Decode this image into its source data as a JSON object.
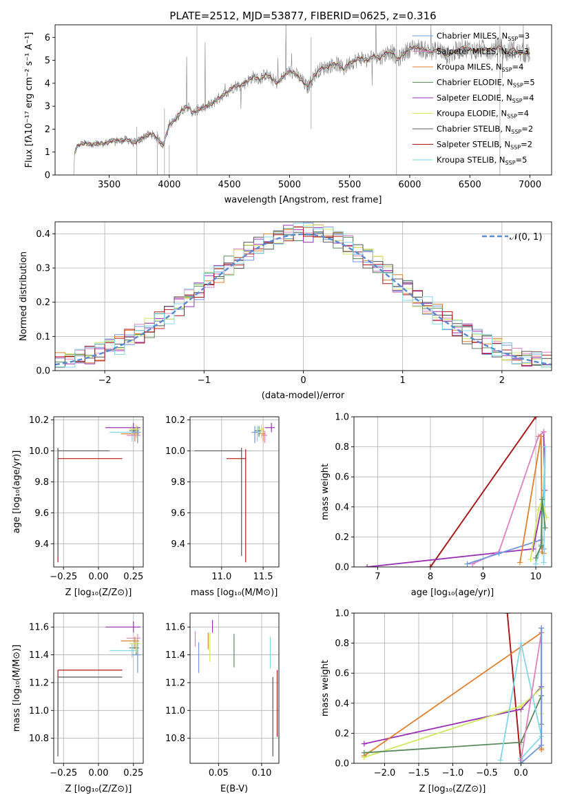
{
  "colors": [
    "#6f96e0",
    "#e07f2c",
    "#e080c0",
    "#5a8a5a",
    "#9a2fb5",
    "#cfe85a",
    "#555555",
    "#b01515",
    "#7fd7e8"
  ],
  "chart_data": [
    {
      "id": "spectrum",
      "type": "line",
      "title": "PLATE=2512, MJD=53877, FIBERID=0625, z=0.316",
      "xlabel": "wavelength [Angstrom, rest frame]",
      "ylabel": "Flux [fλ10⁻¹⁷ erg cm⁻² s⁻¹ A⁻¹]",
      "xlim": [
        3050,
        7180
      ],
      "ylim": [
        0,
        6.55
      ],
      "xticks": [
        3500,
        4000,
        4500,
        5000,
        5500,
        6000,
        6500,
        7000
      ],
      "yticks": [
        0,
        1,
        2,
        3,
        4,
        5,
        6
      ],
      "grid": false,
      "legend_position": "upper-right",
      "data_color": "#808080",
      "continuum": {
        "x": [
          3210,
          3230,
          3260,
          3300,
          3350,
          3400,
          3450,
          3500,
          3550,
          3600,
          3650,
          3700,
          3750,
          3800,
          3850,
          3900,
          3950,
          4000,
          4050,
          4100,
          4150,
          4200,
          4250,
          4300,
          4350,
          4400,
          4450,
          4500,
          4550,
          4600,
          4650,
          4700,
          4750,
          4800,
          4850,
          4900,
          4950,
          5000,
          5050,
          5100,
          5150,
          5200,
          5250,
          5300,
          5350,
          5400,
          5450,
          5500,
          5550,
          5600,
          5650,
          5700,
          5750,
          5800,
          5850,
          5900,
          5950,
          6000,
          6050,
          6100,
          6150,
          6200,
          6250,
          6300,
          6350,
          6400,
          6450,
          6500,
          6550,
          6600,
          6650,
          6700,
          6750,
          6800,
          6850,
          6900,
          6950,
          7000
        ],
        "y": [
          0.9,
          1.2,
          1.35,
          1.4,
          1.3,
          1.4,
          1.35,
          1.45,
          1.5,
          1.5,
          1.55,
          1.4,
          1.5,
          1.7,
          1.8,
          1.6,
          1.3,
          2.2,
          2.4,
          2.8,
          3.0,
          2.7,
          2.9,
          2.95,
          3.1,
          3.3,
          3.5,
          3.7,
          3.9,
          3.9,
          4.1,
          4.3,
          4.15,
          4.4,
          4.2,
          4.0,
          4.3,
          4.55,
          4.4,
          4.15,
          3.8,
          4.3,
          4.6,
          4.7,
          4.8,
          4.85,
          4.6,
          4.9,
          5.0,
          5.1,
          5.0,
          5.2,
          5.1,
          5.3,
          5.4,
          5.0,
          5.3,
          5.5,
          5.6,
          5.5,
          5.4,
          5.4,
          5.5,
          5.2,
          5.3,
          5.45,
          5.55,
          5.5,
          5.4,
          5.5,
          5.45,
          5.5,
          5.6,
          5.3,
          5.5,
          5.35,
          5.3,
          5.3
        ]
      },
      "series": [
        {
          "name": "Chabrier MILES, N_SSP=3",
          "color": "#6f96e0"
        },
        {
          "name": "Salpeter MILES, N_SSP=3",
          "color": "#e080c0"
        },
        {
          "name": "Kroupa MILES, N_SSP=4",
          "color": "#e07f2c"
        },
        {
          "name": "Chabrier ELODIE, N_SSP=5",
          "color": "#5a8a5a"
        },
        {
          "name": "Salpeter ELODIE, N_SSP=4",
          "color": "#9a2fb5"
        },
        {
          "name": "Kroupa ELODIE, N_SSP=4",
          "color": "#cfe85a"
        },
        {
          "name": "Chabrier STELIB, N_SSP=2",
          "color": "#555555"
        },
        {
          "name": "Salpeter STELIB, N_SSP=2",
          "color": "#b01515"
        },
        {
          "name": "Kroupa STELIB, N_SSP=5",
          "color": "#7fd7e8"
        }
      ]
    },
    {
      "id": "residuals",
      "type": "line",
      "xlabel": "(data-model)/error",
      "ylabel": "Normed distribution",
      "xlim": [
        -2.5,
        2.5
      ],
      "ylim": [
        0,
        0.435
      ],
      "xticks": [
        -2,
        -1,
        0,
        1,
        2
      ],
      "yticks": [
        0.0,
        0.1,
        0.2,
        0.3,
        0.4
      ],
      "grid": true,
      "legend_position": "upper-right",
      "normal_curve": {
        "name": "𝒩(0, 1)",
        "color": "#5b8ad6",
        "style": "dashed"
      }
    },
    {
      "id": "age_vs_Z",
      "type": "scatter",
      "xlabel": "Z [log₁₀(Z/Z⊙)]",
      "ylabel": "age  [log₁₀(age/yr)]",
      "xlim": [
        -0.32,
        0.32
      ],
      "ylim": [
        9.25,
        10.22
      ],
      "xticks": [
        -0.25,
        0.0,
        0.25
      ],
      "yticks": [
        9.4,
        9.6,
        9.8,
        10.0,
        10.2
      ],
      "grid": true,
      "points": [
        {
          "x": -0.29,
          "y": 9.95,
          "xerr": [
            0,
            0.46
          ],
          "yerr": [
            0.67,
            0.06
          ],
          "color": "#b01515"
        },
        {
          "x": -0.29,
          "y": 10.0,
          "xerr": [
            0,
            0.37
          ],
          "yerr": [
            0.68,
            0.02
          ],
          "color": "#555555"
        },
        {
          "x": 0.25,
          "y": 10.15,
          "xerr": [
            0.2,
            0.05
          ],
          "yerr": [
            0.03,
            0.03
          ],
          "color": "#9a2fb5"
        },
        {
          "x": 0.26,
          "y": 10.11,
          "xerr": [
            0.1,
            0.03
          ],
          "yerr": [
            0.05,
            0.04
          ],
          "color": "#e07f2c"
        },
        {
          "x": 0.27,
          "y": 10.13,
          "xerr": [
            0.05,
            0.02
          ],
          "yerr": [
            0.04,
            0.03
          ],
          "color": "#5a8a5a"
        },
        {
          "x": 0.24,
          "y": 10.12,
          "xerr": [
            0.16,
            0.04
          ],
          "yerr": [
            0.06,
            0.04
          ],
          "color": "#7fd7e8"
        },
        {
          "x": 0.28,
          "y": 10.1,
          "xerr": [
            0.08,
            0.02
          ],
          "yerr": [
            0.05,
            0.03
          ],
          "color": "#e080c0"
        },
        {
          "x": 0.27,
          "y": 10.14,
          "xerr": [
            0.05,
            0.03
          ],
          "yerr": [
            0.06,
            0.03
          ],
          "color": "#cfe85a"
        },
        {
          "x": 0.28,
          "y": 10.12,
          "xerr": [
            0.04,
            0.02
          ],
          "yerr": [
            0.07,
            0.04
          ],
          "color": "#6f96e0"
        }
      ]
    },
    {
      "id": "age_vs_mass",
      "type": "scatter",
      "xlabel": "mass [log₁₀(M/M⊙)]",
      "xlim": [
        10.62,
        11.69
      ],
      "ylim": [
        9.25,
        10.22
      ],
      "xticks": [
        11.0,
        11.5
      ],
      "yticks": [
        9.4,
        9.6,
        9.8,
        10.0,
        10.2
      ],
      "grid": true,
      "points": [
        {
          "x": 11.29,
          "y": 9.95,
          "xerr": [
            0.23,
            0.0
          ],
          "yerr": [
            0.67,
            0.06
          ],
          "color": "#b01515"
        },
        {
          "x": 11.24,
          "y": 10.0,
          "xerr": [
            0.57,
            0.0
          ],
          "yerr": [
            0.68,
            0.02
          ],
          "color": "#555555"
        },
        {
          "x": 11.6,
          "y": 10.15,
          "xerr": [
            0.08,
            0.04
          ],
          "yerr": [
            0.03,
            0.03
          ],
          "color": "#9a2fb5"
        },
        {
          "x": 11.5,
          "y": 10.11,
          "xerr": [
            0.06,
            0.03
          ],
          "yerr": [
            0.05,
            0.04
          ],
          "color": "#e07f2c"
        },
        {
          "x": 11.45,
          "y": 10.13,
          "xerr": [
            0.05,
            0.03
          ],
          "yerr": [
            0.04,
            0.03
          ],
          "color": "#5a8a5a"
        },
        {
          "x": 11.43,
          "y": 10.12,
          "xerr": [
            0.06,
            0.05
          ],
          "yerr": [
            0.06,
            0.04
          ],
          "color": "#7fd7e8"
        },
        {
          "x": 11.52,
          "y": 10.1,
          "xerr": [
            0.04,
            0.03
          ],
          "yerr": [
            0.05,
            0.03
          ],
          "color": "#e080c0"
        },
        {
          "x": 11.48,
          "y": 10.14,
          "xerr": [
            0.04,
            0.03
          ],
          "yerr": [
            0.06,
            0.03
          ],
          "color": "#cfe85a"
        },
        {
          "x": 11.4,
          "y": 10.12,
          "xerr": [
            0.04,
            0.03
          ],
          "yerr": [
            0.07,
            0.04
          ],
          "color": "#6f96e0"
        }
      ]
    },
    {
      "id": "weight_vs_age",
      "type": "line",
      "xlabel": "age  [log₁₀(age/yr)]",
      "ylabel": "mass weight",
      "xlim": [
        6.55,
        10.3
      ],
      "ylim": [
        0,
        1.0
      ],
      "xticks": [
        7,
        8,
        9,
        10
      ],
      "yticks": [
        0.0,
        0.2,
        0.4,
        0.6,
        0.8,
        1.0
      ],
      "grid": true,
      "series": [
        {
          "color": "#555555",
          "x": [
            8.0,
            10.0
          ],
          "y": [
            0.0,
            1.0
          ]
        },
        {
          "color": "#b01515",
          "x": [
            8.0,
            10.0
          ],
          "y": [
            0.0,
            1.0
          ]
        },
        {
          "color": "#9a2fb5",
          "x": [
            6.8,
            9.95,
            10.17,
            10.15
          ],
          "y": [
            0.0,
            0.12,
            0.51,
            0.9
          ]
        },
        {
          "color": "#e080c0",
          "x": [
            8.8,
            9.3,
            10.05,
            10.15
          ],
          "y": [
            0.02,
            0.1,
            0.87,
            0.9
          ]
        },
        {
          "color": "#6f96e0",
          "x": [
            8.7,
            9.3,
            10.1,
            10.15
          ],
          "y": [
            0.02,
            0.09,
            0.18,
            0.12
          ]
        },
        {
          "color": "#e07f2c",
          "x": [
            9.7,
            10.1,
            10.12,
            10.15
          ],
          "y": [
            0.03,
            0.87,
            0.1,
            0.09
          ]
        },
        {
          "color": "#7fd7e8",
          "x": [
            10.0,
            10.1,
            10.18,
            10.15
          ],
          "y": [
            0.02,
            0.15,
            0.8,
            0.03
          ]
        },
        {
          "color": "#cfe85a",
          "x": [
            9.9,
            10.05,
            10.12,
            10.2
          ],
          "y": [
            0.05,
            0.38,
            0.45,
            0.33
          ]
        },
        {
          "color": "#5a8a5a",
          "x": [
            10.0,
            10.1,
            10.12,
            10.18
          ],
          "y": [
            0.06,
            0.14,
            0.45,
            0.26
          ]
        }
      ]
    },
    {
      "id": "mass_vs_Z",
      "type": "scatter",
      "xlabel": "Z [log₁₀(Z/Z⊙)]",
      "ylabel": "mass [log₁₀(M/M⊙)]",
      "xlim": [
        -0.32,
        0.32
      ],
      "ylim": [
        10.62,
        11.7
      ],
      "xticks": [
        -0.25,
        0.0,
        0.25
      ],
      "yticks": [
        10.8,
        11.0,
        11.2,
        11.4,
        11.6
      ],
      "grid": true,
      "points": [
        {
          "x": -0.29,
          "y": 11.29,
          "xerr": [
            0,
            0.46
          ],
          "yerr": [
            0.48,
            0.0
          ],
          "color": "#b01515"
        },
        {
          "x": -0.29,
          "y": 11.24,
          "xerr": [
            0,
            0.46
          ],
          "yerr": [
            0.57,
            0.0
          ],
          "color": "#555555"
        },
        {
          "x": 0.25,
          "y": 11.6,
          "xerr": [
            0.2,
            0.05
          ],
          "yerr": [
            0.04,
            0.04
          ],
          "color": "#9a2fb5"
        },
        {
          "x": 0.26,
          "y": 11.5,
          "xerr": [
            0.1,
            0.03
          ],
          "yerr": [
            0.06,
            0.03
          ],
          "color": "#e07f2c"
        },
        {
          "x": 0.27,
          "y": 11.45,
          "xerr": [
            0.05,
            0.02
          ],
          "yerr": [
            0.05,
            0.05
          ],
          "color": "#5a8a5a"
        },
        {
          "x": 0.24,
          "y": 11.43,
          "xerr": [
            0.16,
            0.04
          ],
          "yerr": [
            0.05,
            0.05
          ],
          "color": "#7fd7e8"
        },
        {
          "x": 0.28,
          "y": 11.52,
          "xerr": [
            0.08,
            0.02
          ],
          "yerr": [
            0.05,
            0.03
          ],
          "color": "#e080c0"
        },
        {
          "x": 0.27,
          "y": 11.48,
          "xerr": [
            0.05,
            0.03
          ],
          "yerr": [
            0.06,
            0.04
          ],
          "color": "#cfe85a"
        },
        {
          "x": 0.28,
          "y": 11.4,
          "xerr": [
            0.04,
            0.02
          ],
          "yerr": [
            0.13,
            0.08
          ],
          "color": "#6f96e0"
        }
      ]
    },
    {
      "id": "mass_vs_EBV",
      "type": "scatter",
      "xlabel": "E(B-V)",
      "xlim": [
        0.017,
        0.12
      ],
      "ylim": [
        10.62,
        11.7
      ],
      "xticks": [
        0.05,
        0.1
      ],
      "yticks": [
        10.8,
        11.0,
        11.2,
        11.4,
        11.6
      ],
      "grid": true,
      "points": [
        {
          "x": 0.118,
          "y": 11.29,
          "yerr": [
            0.48,
            0.0
          ],
          "color": "#b01515"
        },
        {
          "x": 0.113,
          "y": 11.24,
          "yerr": [
            0.57,
            0.0
          ],
          "color": "#555555"
        },
        {
          "x": 0.043,
          "y": 11.6,
          "yerr": [
            0.04,
            0.05
          ],
          "color": "#9a2fb5"
        },
        {
          "x": 0.038,
          "y": 11.5,
          "yerr": [
            0.06,
            0.06
          ],
          "color": "#e07f2c"
        },
        {
          "x": 0.068,
          "y": 11.45,
          "yerr": [
            0.14,
            0.1
          ],
          "color": "#5a8a5a"
        },
        {
          "x": 0.11,
          "y": 11.43,
          "yerr": [
            0.13,
            0.1
          ],
          "color": "#7fd7e8"
        },
        {
          "x": 0.023,
          "y": 11.52,
          "yerr": [
            0.06,
            0.05
          ],
          "color": "#e080c0"
        },
        {
          "x": 0.04,
          "y": 11.48,
          "yerr": [
            0.13,
            0.08
          ],
          "color": "#cfe85a"
        },
        {
          "x": 0.027,
          "y": 11.4,
          "yerr": [
            0.13,
            0.09
          ],
          "color": "#6f96e0"
        }
      ]
    },
    {
      "id": "weight_vs_Z",
      "type": "line",
      "xlabel": "Z [log₁₀(Z/Z⊙)]",
      "ylabel": "mass weight",
      "xlim": [
        -2.45,
        0.45
      ],
      "ylim": [
        0,
        1.0
      ],
      "xticks": [
        -2.0,
        -1.5,
        -1.0,
        -0.5,
        0.0
      ],
      "yticks": [
        0.0,
        0.2,
        0.4,
        0.6,
        0.8,
        1.0
      ],
      "grid": true,
      "series": [
        {
          "color": "#555555",
          "x": [
            -0.2,
            0.0
          ],
          "y": [
            1.0,
            0.0
          ]
        },
        {
          "color": "#b01515",
          "x": [
            -0.2,
            0.0
          ],
          "y": [
            1.0,
            0.0
          ]
        },
        {
          "color": "#9a2fb5",
          "x": [
            -2.3,
            0.0,
            0.3,
            0.3
          ],
          "y": [
            0.13,
            0.36,
            0.51,
            0.9
          ]
        },
        {
          "color": "#e07f2c",
          "x": [
            -2.3,
            0.3,
            0.3,
            0.3
          ],
          "y": [
            0.05,
            0.87,
            0.1,
            0.09
          ]
        },
        {
          "color": "#cfe85a",
          "x": [
            -2.3,
            0.0,
            0.3,
            0.3
          ],
          "y": [
            0.04,
            0.38,
            0.5,
            0.33
          ]
        },
        {
          "color": "#5a8a5a",
          "x": [
            -2.3,
            0.0,
            0.3,
            0.3
          ],
          "y": [
            0.07,
            0.14,
            0.45,
            0.26
          ]
        },
        {
          "color": "#7fd7e8",
          "x": [
            -0.3,
            0.0,
            0.3,
            0.0
          ],
          "y": [
            0.02,
            0.8,
            0.18,
            0.03
          ]
        },
        {
          "color": "#e080c0",
          "x": [
            0.0,
            0.3,
            0.3
          ],
          "y": [
            0.02,
            0.87,
            0.9
          ]
        },
        {
          "color": "#6f96e0",
          "x": [
            0.0,
            0.3,
            0.3
          ],
          "y": [
            0.0,
            0.12,
            0.9
          ]
        }
      ]
    }
  ]
}
